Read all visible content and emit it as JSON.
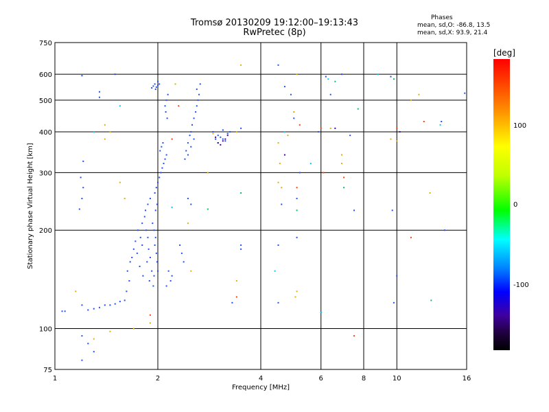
{
  "header": {
    "title_line1": "Tromsø 20130209 19:12:00–19:13:43",
    "title_line2": "RwPretec (8p)",
    "phase_title": "Phases",
    "phase_o": "mean, sd,O: -86.8, 13.5",
    "phase_x": "mean, sd,X:  93.9, 21.4"
  },
  "colorbar": {
    "unit_label": "[deg]",
    "ticks": [
      "100",
      "0",
      "-100"
    ],
    "colors": {
      "top": "#ff0000",
      "mid": "#00ff00",
      "bottom": "#000000"
    }
  },
  "chart_data": {
    "type": "scatter",
    "title": "Tromsø 20130209 19:12:00–19:13:43",
    "subtitle": "RwPretec (8p)",
    "xlabel": "Frequency [MHz]",
    "ylabel": "Stationary phase Virtual Height [km]",
    "xscale": "log",
    "yscale": "log",
    "xlim": [
      1,
      16
    ],
    "ylim": [
      75,
      750
    ],
    "xticks": [
      1,
      2,
      4,
      6,
      8,
      10,
      16
    ],
    "xtick_labels": [
      "1",
      "2",
      "4",
      "6",
      "8",
      "10",
      "16"
    ],
    "yticks": [
      75,
      100,
      200,
      300,
      400,
      500,
      600,
      750
    ],
    "ytick_labels": [
      "75",
      "100",
      "200",
      "300",
      "400",
      "500",
      "600",
      "750"
    ],
    "grid": true,
    "point_color": "#1a4dff",
    "series": [
      {
        "color": "#1a4dff",
        "points": [
          [
            1.05,
            113
          ],
          [
            1.07,
            113
          ],
          [
            1.2,
            118
          ],
          [
            1.25,
            114
          ],
          [
            1.3,
            115
          ],
          [
            1.35,
            116
          ],
          [
            1.4,
            118
          ],
          [
            1.45,
            118
          ],
          [
            1.5,
            119
          ],
          [
            1.55,
            121
          ],
          [
            1.6,
            122
          ],
          [
            1.62,
            130
          ],
          [
            1.65,
            140
          ],
          [
            1.63,
            150
          ],
          [
            1.66,
            160
          ],
          [
            1.7,
            175
          ],
          [
            1.68,
            165
          ],
          [
            1.72,
            185
          ],
          [
            1.75,
            200
          ],
          [
            1.78,
            190
          ],
          [
            1.8,
            180
          ],
          [
            1.74,
            170
          ],
          [
            1.77,
            155
          ],
          [
            1.81,
            145
          ],
          [
            1.8,
            210
          ],
          [
            1.83,
            220
          ],
          [
            1.85,
            200
          ],
          [
            1.87,
            190
          ],
          [
            1.88,
            175
          ],
          [
            1.9,
            165
          ],
          [
            1.86,
            160
          ],
          [
            1.92,
            150
          ],
          [
            1.89,
            140
          ],
          [
            1.94,
            135
          ],
          [
            1.84,
            230
          ],
          [
            1.87,
            240
          ],
          [
            1.9,
            250
          ],
          [
            1.93,
            210
          ],
          [
            1.95,
            200
          ],
          [
            1.97,
            190
          ],
          [
            1.96,
            180
          ],
          [
            1.98,
            170
          ],
          [
            1.99,
            160
          ],
          [
            2.0,
            150
          ],
          [
            1.95,
            145
          ],
          [
            1.97,
            230
          ],
          [
            1.99,
            240
          ],
          [
            1.96,
            260
          ],
          [
            1.98,
            270
          ],
          [
            2.0,
            280
          ],
          [
            2.02,
            290
          ],
          [
            2.04,
            300
          ],
          [
            2.06,
            310
          ],
          [
            2.08,
            320
          ],
          [
            2.1,
            330
          ],
          [
            2.12,
            340
          ],
          [
            2.03,
            350
          ],
          [
            2.05,
            360
          ],
          [
            2.07,
            370
          ],
          [
            1.92,
            545
          ],
          [
            1.94,
            552
          ],
          [
            1.96,
            560
          ],
          [
            1.98,
            548
          ],
          [
            2.0,
            555
          ],
          [
            2.02,
            560
          ],
          [
            2.0,
            570
          ],
          [
            1.97,
            540
          ],
          [
            2.1,
            480
          ],
          [
            2.12,
            500
          ],
          [
            2.14,
            520
          ],
          [
            2.11,
            460
          ],
          [
            2.13,
            440
          ],
          [
            2.2,
            145
          ],
          [
            2.18,
            140
          ],
          [
            2.15,
            150
          ],
          [
            2.12,
            135
          ],
          [
            2.4,
            330
          ],
          [
            2.42,
            350
          ],
          [
            2.45,
            370
          ],
          [
            2.48,
            390
          ],
          [
            2.5,
            400
          ],
          [
            2.52,
            420
          ],
          [
            2.55,
            440
          ],
          [
            2.58,
            460
          ],
          [
            2.6,
            480
          ],
          [
            2.62,
            500
          ],
          [
            2.64,
            520
          ],
          [
            2.6,
            540
          ],
          [
            2.66,
            560
          ],
          [
            2.5,
            360
          ],
          [
            2.55,
            380
          ],
          [
            2.45,
            340
          ],
          [
            2.35,
            170
          ],
          [
            2.38,
            160
          ],
          [
            2.32,
            180
          ],
          [
            2.45,
            250
          ],
          [
            2.5,
            240
          ],
          [
            2.9,
            400
          ],
          [
            3.0,
            390
          ],
          [
            3.05,
            385
          ],
          [
            3.1,
            380
          ],
          [
            3.15,
            375
          ],
          [
            3.2,
            395
          ],
          [
            3.1,
            405
          ],
          [
            3.25,
            400
          ],
          [
            3.0,
            370
          ],
          [
            2.95,
            380
          ],
          [
            1.2,
            250
          ],
          [
            1.21,
            270
          ],
          [
            1.19,
            290
          ],
          [
            1.21,
            325
          ],
          [
            1.18,
            232
          ],
          [
            1.2,
            594
          ],
          [
            1.35,
            510
          ],
          [
            1.35,
            530
          ],
          [
            1.5,
            600
          ],
          [
            1.2,
            95
          ],
          [
            1.25,
            90
          ],
          [
            1.3,
            85
          ],
          [
            1.2,
            80
          ],
          [
            3.5,
            180
          ],
          [
            3.5,
            175
          ],
          [
            3.3,
            120
          ],
          [
            4.5,
            640
          ],
          [
            4.7,
            550
          ],
          [
            4.9,
            520
          ],
          [
            5.0,
            440
          ],
          [
            4.5,
            180
          ],
          [
            4.5,
            120
          ],
          [
            4.6,
            240
          ],
          [
            5.1,
            250
          ],
          [
            5.1,
            190
          ],
          [
            5.2,
            300
          ],
          [
            6.2,
            590
          ],
          [
            6.4,
            520
          ],
          [
            6.9,
            600
          ],
          [
            7.5,
            230
          ],
          [
            7.3,
            390
          ],
          [
            9.6,
            590
          ],
          [
            9.7,
            230
          ],
          [
            10.0,
            145
          ],
          [
            9.8,
            120
          ],
          [
            13.5,
            430
          ],
          [
            13.8,
            200
          ],
          [
            15.8,
            525
          ],
          [
            6.0,
            112
          ],
          [
            5.9,
            400
          ],
          [
            3.5,
            410
          ]
        ]
      },
      {
        "color": "#4000a0",
        "points": [
          [
            3.0,
            370
          ],
          [
            3.05,
            365
          ],
          [
            3.1,
            375
          ],
          [
            3.15,
            380
          ],
          [
            2.95,
            385
          ],
          [
            3.2,
            390
          ],
          [
            4.7,
            340
          ],
          [
            6.6,
            410
          ],
          [
            10.2,
            400
          ]
        ]
      },
      {
        "color": "#e0b000",
        "points": [
          [
            1.4,
            380
          ],
          [
            1.45,
            400
          ],
          [
            1.4,
            420
          ],
          [
            1.6,
            250
          ],
          [
            1.55,
            280
          ],
          [
            1.15,
            130
          ],
          [
            1.3,
            93
          ],
          [
            1.45,
            98
          ],
          [
            2.25,
            560
          ],
          [
            2.45,
            210
          ],
          [
            3.5,
            640
          ],
          [
            3.4,
            400
          ],
          [
            4.5,
            370
          ],
          [
            4.55,
            320
          ],
          [
            4.5,
            280
          ],
          [
            4.6,
            270
          ],
          [
            4.8,
            390
          ],
          [
            5.0,
            460
          ],
          [
            5.0,
            460
          ],
          [
            5.1,
            600
          ],
          [
            6.4,
            410
          ],
          [
            6.9,
            340
          ],
          [
            6.9,
            320
          ],
          [
            9.6,
            380
          ],
          [
            10.0,
            375
          ],
          [
            11.0,
            500
          ],
          [
            11.6,
            520
          ],
          [
            12.5,
            260
          ],
          [
            5.1,
            130
          ],
          [
            5.05,
            125
          ],
          [
            2.9,
            395
          ],
          [
            3.4,
            140
          ],
          [
            1.7,
            100
          ],
          [
            1.9,
            104
          ],
          [
            2.5,
            150
          ],
          [
            2.8,
            300
          ]
        ]
      },
      {
        "color": "#ff4000",
        "points": [
          [
            2.2,
            380
          ],
          [
            2.3,
            480
          ],
          [
            3.4,
            125
          ],
          [
            5.1,
            270
          ],
          [
            5.2,
            420
          ],
          [
            6.0,
            410
          ],
          [
            6.1,
            300
          ],
          [
            7.0,
            290
          ],
          [
            7.5,
            95
          ],
          [
            11.0,
            190
          ],
          [
            12.0,
            430
          ],
          [
            10.0,
            410
          ],
          [
            1.9,
            110
          ]
        ]
      },
      {
        "color": "#00c060",
        "points": [
          [
            2.8,
            232
          ],
          [
            3.5,
            260
          ],
          [
            5.1,
            230
          ],
          [
            6.6,
            570
          ],
          [
            7.7,
            470
          ],
          [
            9.8,
            580
          ],
          [
            12.6,
            122
          ],
          [
            7.0,
            270
          ]
        ]
      },
      {
        "color": "#00c8ff",
        "points": [
          [
            1.3,
            400
          ],
          [
            1.55,
            480
          ],
          [
            2.2,
            235
          ],
          [
            4.4,
            150
          ],
          [
            4.7,
            400
          ],
          [
            5.6,
            320
          ],
          [
            6.3,
            580
          ],
          [
            8.8,
            600
          ],
          [
            13.4,
            420
          ],
          [
            6.0,
            112
          ]
        ]
      }
    ]
  }
}
